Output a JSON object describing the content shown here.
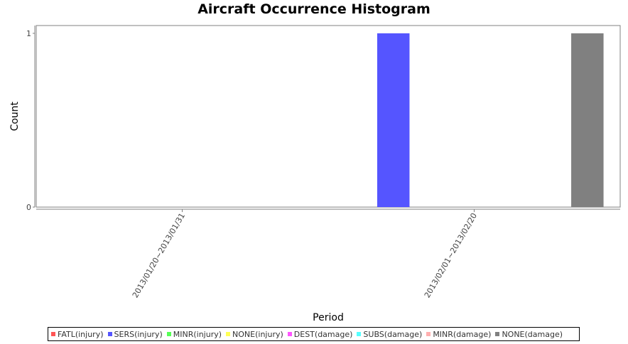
{
  "chart_data": {
    "type": "bar",
    "title": "Aircraft Occurrence Histogram",
    "xlabel": "Period",
    "ylabel": "Count",
    "ylim": [
      0,
      1
    ],
    "yticks": [
      0,
      1
    ],
    "grid": false,
    "legend_position": "bottom",
    "categories": [
      "2013/01/20~2013/01/31",
      "2013/02/01~2013/02/20"
    ],
    "series": [
      {
        "name": "FATL(injury)",
        "color": "#ff5555",
        "values": [
          0,
          0
        ]
      },
      {
        "name": "SERS(injury)",
        "color": "#5555ff",
        "values": [
          0,
          1
        ]
      },
      {
        "name": "MINR(injury)",
        "color": "#55ff55",
        "values": [
          0,
          0
        ]
      },
      {
        "name": "NONE(injury)",
        "color": "#ffff55",
        "values": [
          0,
          0
        ]
      },
      {
        "name": "DEST(damage)",
        "color": "#ff55ff",
        "values": [
          0,
          0
        ]
      },
      {
        "name": "SUBS(damage)",
        "color": "#55ffff",
        "values": [
          0,
          0
        ]
      },
      {
        "name": "MINR(damage)",
        "color": "#ffafaf",
        "values": [
          0,
          0
        ]
      },
      {
        "name": "NONE(damage)",
        "color": "#808080",
        "values": [
          0,
          1
        ]
      }
    ]
  }
}
